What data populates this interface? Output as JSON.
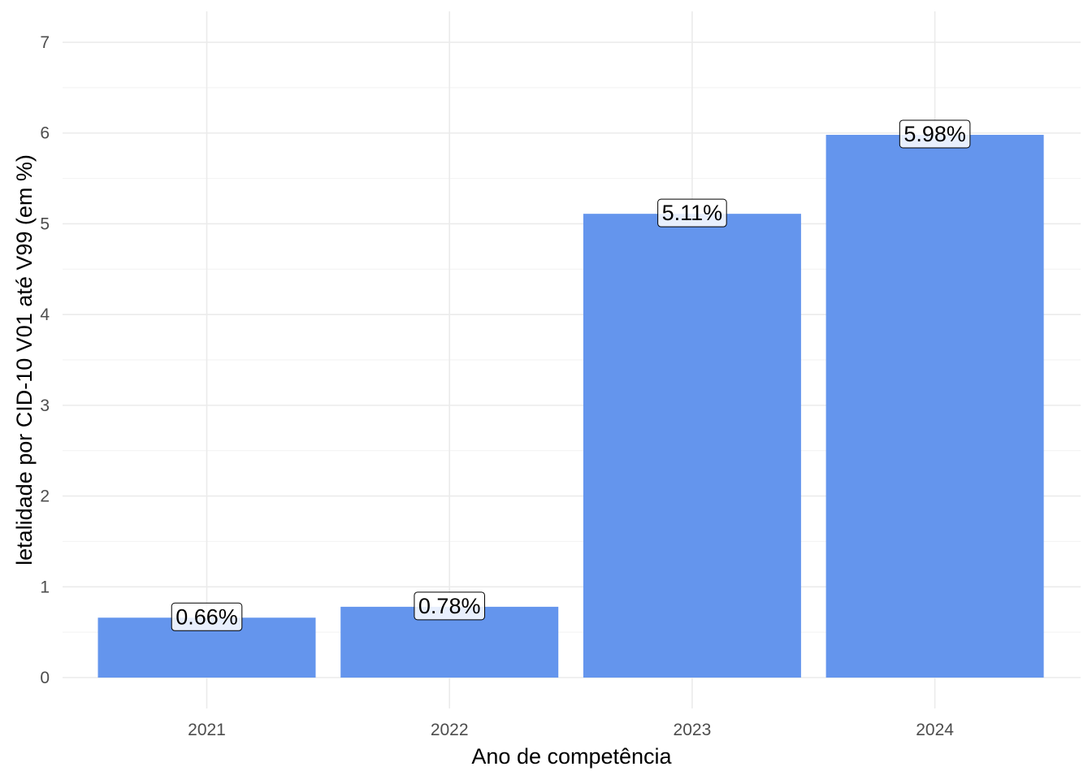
{
  "chart_data": {
    "type": "bar",
    "categories": [
      "2021",
      "2022",
      "2023",
      "2024"
    ],
    "values": [
      0.66,
      0.78,
      5.11,
      5.98
    ],
    "data_labels": [
      "0.66%",
      "0.78%",
      "5.11%",
      "5.98%"
    ],
    "title": "",
    "xlabel": "Ano de competência",
    "ylabel": "letalidade por CID-10 V01 até V99 (em %)",
    "ylim": [
      0,
      7
    ],
    "yticks": [
      0,
      1,
      2,
      3,
      4,
      5,
      6,
      7
    ],
    "grid": true,
    "legend": "none",
    "bar_color": "#6495ED"
  }
}
